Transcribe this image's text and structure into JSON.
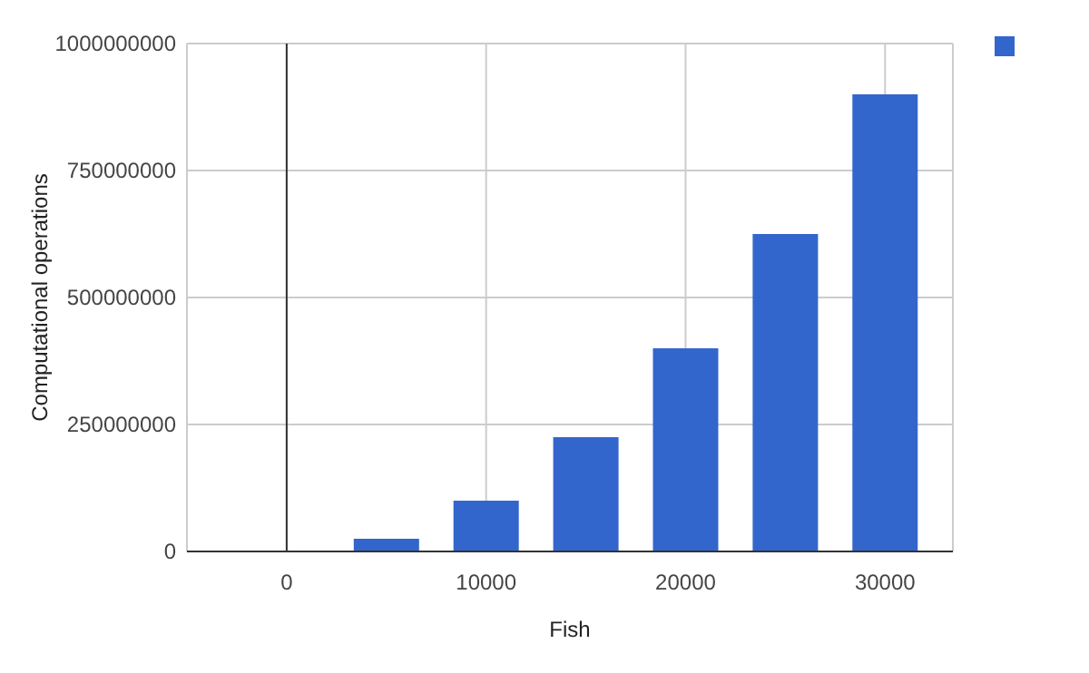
{
  "chart_data": {
    "type": "bar",
    "xlabel": "Fish",
    "ylabel": "Computational operations",
    "x": [
      0,
      5000,
      10000,
      15000,
      20000,
      25000,
      30000
    ],
    "series": [
      {
        "color": "#3366cc",
        "values": [
          0,
          25000000,
          100000000,
          225000000,
          400000000,
          625000000,
          900000000
        ]
      }
    ],
    "xlim": [
      -5000,
      33400
    ],
    "xticks": [
      0,
      10000,
      20000,
      30000
    ],
    "ylim": [
      0,
      1000000000
    ],
    "yticks": [
      0,
      250000000,
      500000000,
      750000000,
      1000000000
    ],
    "grid": true
  }
}
